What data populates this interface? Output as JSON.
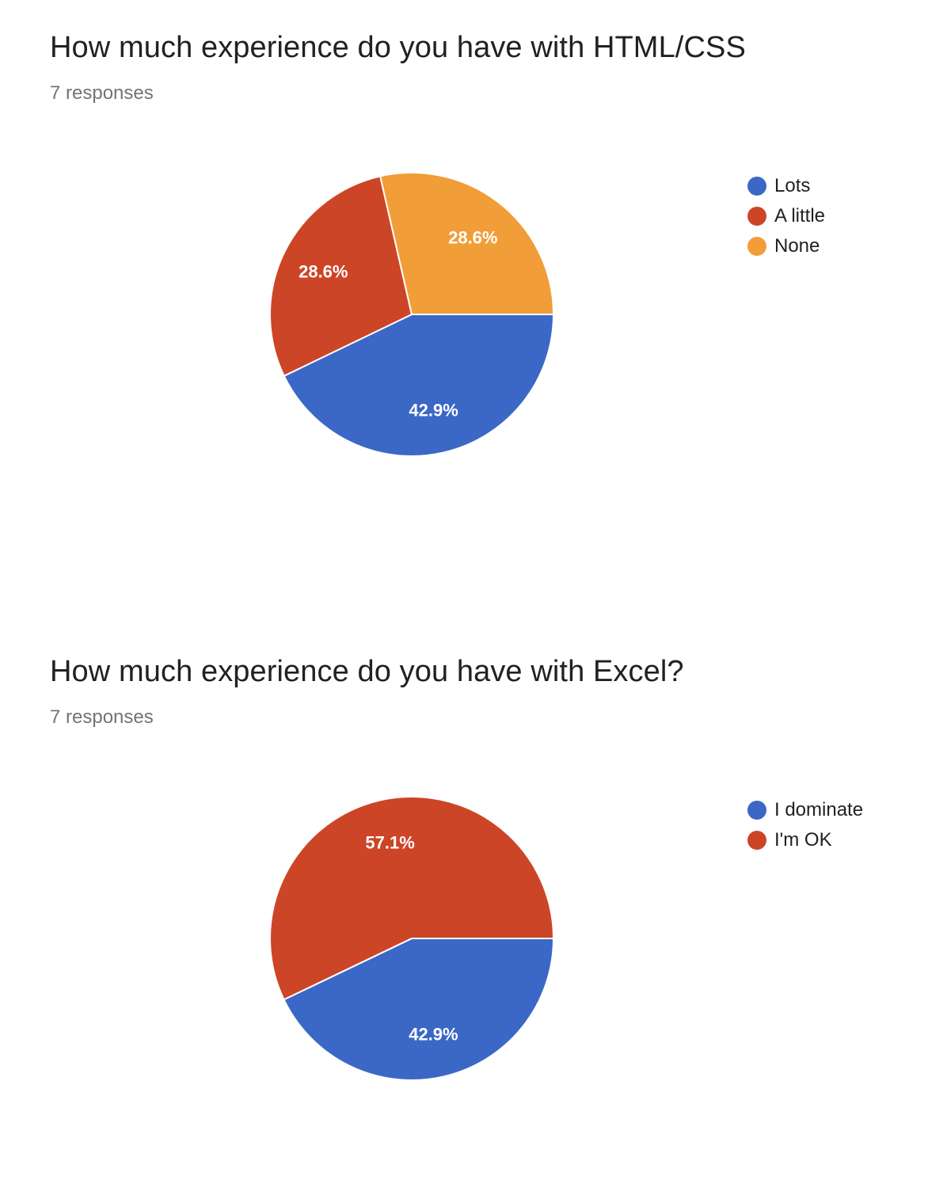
{
  "questions": [
    {
      "title": "How much experience do you have with HTML/CSS",
      "responses_label": "7 responses"
    },
    {
      "title": "How much experience do you have with Excel?",
      "responses_label": "7 responses"
    }
  ],
  "chart_data": [
    {
      "type": "pie",
      "title": "How much experience do you have with HTML/CSS",
      "categories": [
        "Lots",
        "A little",
        "None"
      ],
      "values": [
        42.9,
        28.6,
        28.6
      ],
      "slice_labels": [
        "42.9%",
        "28.6%",
        "28.6%"
      ],
      "colors": [
        "#3b68c6",
        "#cc4527",
        "#f19d38"
      ],
      "legend_position": "top-right"
    },
    {
      "type": "pie",
      "title": "How much experience do you have with Excel?",
      "categories": [
        "I dominate",
        "I'm OK"
      ],
      "values": [
        42.9,
        57.1
      ],
      "slice_labels": [
        "42.9%",
        "57.1%"
      ],
      "colors": [
        "#3b68c6",
        "#cc4527"
      ],
      "legend_position": "top-right"
    }
  ]
}
